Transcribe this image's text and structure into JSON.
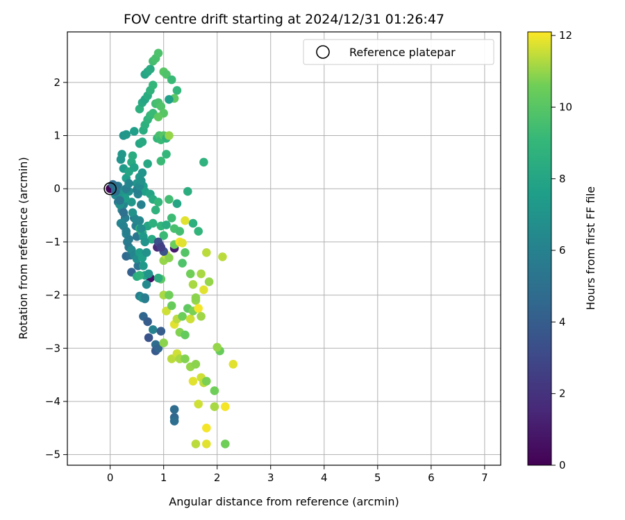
{
  "chart_data": {
    "type": "scatter",
    "title": "FOV centre drift starting at 2024/12/31 01:26:47",
    "xlabel": "Angular distance from reference (arcmin)",
    "ylabel": "Rotation from reference (arcmin)",
    "xlim": [
      -0.8,
      7.3
    ],
    "ylim": [
      -5.2,
      2.95
    ],
    "x_ticks": [
      0,
      1,
      2,
      3,
      4,
      5,
      6,
      7
    ],
    "y_ticks": [
      -5,
      -4,
      -3,
      -2,
      -1,
      0,
      1,
      2
    ],
    "grid": true,
    "legend": {
      "placement": "top-right",
      "entries": [
        "Reference platepar"
      ]
    },
    "reference_point": {
      "label": "Reference platepar",
      "x": 0,
      "y": 0
    },
    "colorbar": {
      "label": "Hours from first FF file",
      "min": 0,
      "max": 12.1,
      "ticks": [
        0,
        2,
        4,
        6,
        8,
        10,
        12
      ],
      "colormap": "viridis"
    },
    "series": [
      {
        "points": [
          [
            0.0,
            0.0,
            0.1
          ],
          [
            0.05,
            0.08,
            4.8
          ],
          [
            0.1,
            -0.02,
            5.6
          ],
          [
            0.12,
            -0.1,
            5.2
          ],
          [
            0.15,
            -0.25,
            5.4
          ],
          [
            0.18,
            -0.05,
            6.0
          ],
          [
            0.2,
            -0.18,
            6.3
          ],
          [
            0.22,
            -0.4,
            5.9
          ],
          [
            0.25,
            -0.3,
            6.2
          ],
          [
            0.28,
            -0.55,
            5.8
          ],
          [
            0.3,
            -0.85,
            6.1
          ],
          [
            0.32,
            -1.0,
            5.7
          ],
          [
            0.35,
            -1.1,
            5.5
          ],
          [
            0.3,
            -1.27,
            4.6
          ],
          [
            0.38,
            -1.25,
            5.0
          ],
          [
            0.4,
            -1.57,
            4.2
          ],
          [
            0.45,
            -0.55,
            5.6
          ],
          [
            0.48,
            -0.7,
            5.8
          ],
          [
            0.5,
            -0.9,
            5.3
          ],
          [
            0.52,
            -1.45,
            5.1
          ],
          [
            0.55,
            -2.02,
            5.9
          ],
          [
            0.6,
            -2.05,
            5.5
          ],
          [
            0.62,
            -2.4,
            4.5
          ],
          [
            0.65,
            -2.07,
            5.7
          ],
          [
            0.7,
            -2.5,
            4.0
          ],
          [
            0.72,
            -2.8,
            3.5
          ],
          [
            0.75,
            -1.68,
            0.6
          ],
          [
            0.8,
            -2.65,
            6.0
          ],
          [
            0.85,
            -2.93,
            4.8
          ],
          [
            0.85,
            -3.05,
            3.8
          ],
          [
            0.9,
            -3.0,
            4.4
          ],
          [
            0.95,
            -2.68,
            4.0
          ],
          [
            0.88,
            -1.1,
            1.6
          ],
          [
            0.92,
            -1.05,
            2.0
          ],
          [
            1.2,
            -1.12,
            1.0
          ],
          [
            1.2,
            -4.15,
            4.8
          ],
          [
            1.2,
            -4.3,
            4.6
          ],
          [
            1.2,
            -4.37,
            4.9
          ],
          [
            0.2,
            0.55,
            7.0
          ],
          [
            0.22,
            0.65,
            7.2
          ],
          [
            0.25,
            0.38,
            7.4
          ],
          [
            0.3,
            0.2,
            7.6
          ],
          [
            0.35,
            0.32,
            8.0
          ],
          [
            0.4,
            0.5,
            8.2
          ],
          [
            0.42,
            0.62,
            8.4
          ],
          [
            0.45,
            0.4,
            7.8
          ],
          [
            0.5,
            0.1,
            7.0
          ],
          [
            0.55,
            0.22,
            7.3
          ],
          [
            0.6,
            0.3,
            7.1
          ],
          [
            0.62,
            0.05,
            7.5
          ],
          [
            0.65,
            -0.05,
            7.7
          ],
          [
            0.7,
            0.47,
            8.1
          ],
          [
            0.75,
            -0.1,
            7.9
          ],
          [
            0.8,
            -0.2,
            8.3
          ],
          [
            0.55,
            -0.75,
            8.5
          ],
          [
            0.6,
            -0.82,
            8.7
          ],
          [
            0.7,
            -0.7,
            8.0
          ],
          [
            0.78,
            -0.95,
            8.2
          ],
          [
            0.8,
            -0.65,
            8.6
          ],
          [
            0.85,
            -0.4,
            8.8
          ],
          [
            0.9,
            -0.25,
            9.0
          ],
          [
            0.95,
            -0.7,
            8.9
          ],
          [
            1.0,
            -0.88,
            9.2
          ],
          [
            1.05,
            -0.68,
            8.4
          ],
          [
            1.1,
            -0.2,
            9.4
          ],
          [
            1.15,
            -0.55,
            9.3
          ],
          [
            1.2,
            -0.75,
            9.6
          ],
          [
            1.25,
            -0.28,
            8.0
          ],
          [
            1.3,
            -0.8,
            9.5
          ],
          [
            1.35,
            -1.4,
            9.8
          ],
          [
            1.4,
            -1.2,
            9.9
          ],
          [
            1.45,
            -0.05,
            8.5
          ],
          [
            1.55,
            -0.65,
            8.6
          ],
          [
            1.65,
            -0.8,
            8.9
          ],
          [
            1.75,
            0.5,
            8.7
          ],
          [
            0.25,
            1.0,
            7.0
          ],
          [
            0.3,
            1.02,
            7.2
          ],
          [
            0.45,
            1.08,
            7.6
          ],
          [
            0.55,
            0.85,
            8.0
          ],
          [
            0.6,
            0.88,
            8.2
          ],
          [
            0.62,
            1.1,
            8.4
          ],
          [
            0.65,
            1.2,
            8.6
          ],
          [
            0.7,
            1.3,
            8.8
          ],
          [
            0.75,
            1.38,
            9.0
          ],
          [
            0.8,
            1.42,
            9.2
          ],
          [
            0.85,
            1.6,
            9.4
          ],
          [
            0.9,
            1.62,
            9.6
          ],
          [
            0.95,
            1.55,
            9.8
          ],
          [
            1.0,
            1.42,
            10.0
          ],
          [
            0.9,
            1.35,
            10.2
          ],
          [
            0.88,
            0.95,
            9.0
          ],
          [
            0.92,
            1.0,
            9.6
          ],
          [
            0.95,
            0.92,
            9.2
          ],
          [
            1.0,
            1.0,
            10.0
          ],
          [
            1.05,
            0.95,
            8.8
          ],
          [
            1.1,
            1.0,
            11.0
          ],
          [
            1.05,
            0.65,
            9.0
          ],
          [
            0.95,
            0.52,
            9.2
          ],
          [
            0.55,
            1.5,
            8.6
          ],
          [
            0.6,
            1.62,
            8.2
          ],
          [
            0.65,
            1.68,
            8.0
          ],
          [
            0.7,
            1.75,
            8.4
          ],
          [
            0.75,
            1.85,
            8.8
          ],
          [
            0.8,
            1.95,
            9.0
          ],
          [
            0.65,
            2.15,
            7.9
          ],
          [
            0.7,
            2.2,
            8.1
          ],
          [
            0.75,
            2.25,
            8.3
          ],
          [
            0.8,
            2.4,
            9.5
          ],
          [
            0.85,
            2.45,
            9.6
          ],
          [
            0.9,
            2.55,
            9.7
          ],
          [
            1.0,
            2.2,
            10.0
          ],
          [
            1.05,
            2.15,
            9.8
          ],
          [
            1.15,
            2.05,
            9.2
          ],
          [
            1.25,
            1.85,
            9.0
          ],
          [
            1.2,
            1.7,
            10.1
          ],
          [
            1.1,
            1.68,
            7.6
          ],
          [
            1.0,
            -1.35,
            11.0
          ],
          [
            1.05,
            -1.25,
            11.5
          ],
          [
            1.1,
            -1.3,
            10.9
          ],
          [
            1.2,
            -1.05,
            10.5
          ],
          [
            1.3,
            -1.0,
            12.0
          ],
          [
            1.35,
            -1.02,
            11.8
          ],
          [
            1.4,
            -0.6,
            11.8
          ],
          [
            1.5,
            -1.6,
            10.6
          ],
          [
            1.55,
            -1.8,
            11.2
          ],
          [
            1.6,
            -2.1,
            11.0
          ],
          [
            1.7,
            -1.6,
            11.2
          ],
          [
            1.75,
            -1.9,
            11.8
          ],
          [
            1.8,
            -1.2,
            11.4
          ],
          [
            1.85,
            -1.75,
            11.0
          ],
          [
            2.1,
            -1.28,
            11.4
          ],
          [
            0.95,
            -1.7,
            10.1
          ],
          [
            1.0,
            -2.0,
            11.2
          ],
          [
            1.05,
            -2.3,
            11.6
          ],
          [
            1.1,
            -2.0,
            10.6
          ],
          [
            1.15,
            -2.2,
            10.4
          ],
          [
            1.2,
            -2.55,
            11.8
          ],
          [
            1.25,
            -2.45,
            11.4
          ],
          [
            1.3,
            -2.7,
            10.8
          ],
          [
            1.35,
            -2.4,
            10.5
          ],
          [
            1.4,
            -2.75,
            10.3
          ],
          [
            1.45,
            -2.25,
            10.2
          ],
          [
            1.5,
            -2.45,
            11.6
          ],
          [
            1.55,
            -2.3,
            10.7
          ],
          [
            1.6,
            -2.05,
            10.9
          ],
          [
            1.65,
            -2.25,
            12.0
          ],
          [
            1.7,
            -2.4,
            11.1
          ],
          [
            1.0,
            -2.9,
            10.9
          ],
          [
            1.15,
            -3.2,
            11.4
          ],
          [
            1.25,
            -3.1,
            11.6
          ],
          [
            1.3,
            -3.2,
            11.2
          ],
          [
            1.4,
            -3.2,
            10.8
          ],
          [
            1.5,
            -3.35,
            11.0
          ],
          [
            1.55,
            -3.62,
            11.8
          ],
          [
            1.6,
            -3.3,
            10.9
          ],
          [
            1.7,
            -3.55,
            11.6
          ],
          [
            1.75,
            -3.65,
            11.4
          ],
          [
            1.8,
            -3.62,
            10.7
          ],
          [
            1.65,
            -4.05,
            11.6
          ],
          [
            1.95,
            -3.8,
            10.6
          ],
          [
            1.95,
            -4.1,
            11.2
          ],
          [
            2.05,
            -3.05,
            10.4
          ],
          [
            2.0,
            -2.98,
            11.0
          ],
          [
            2.15,
            -4.1,
            12.0
          ],
          [
            2.3,
            -3.3,
            11.8
          ],
          [
            1.8,
            -4.5,
            12.0
          ],
          [
            1.6,
            -4.8,
            11.4
          ],
          [
            1.8,
            -4.8,
            11.8
          ],
          [
            2.15,
            -4.8,
            10.6
          ],
          [
            0.1,
            -0.12,
            6.4
          ],
          [
            0.15,
            0.05,
            6.6
          ],
          [
            0.18,
            -0.3,
            6.8
          ],
          [
            0.22,
            -0.1,
            7.0
          ],
          [
            0.28,
            -0.2,
            6.5
          ],
          [
            0.35,
            -0.05,
            6.7
          ],
          [
            0.4,
            -0.25,
            7.2
          ],
          [
            0.42,
            -0.45,
            6.9
          ],
          [
            0.48,
            -0.58,
            6.3
          ],
          [
            0.52,
            -0.1,
            6.1
          ],
          [
            0.58,
            -0.3,
            6.0
          ],
          [
            0.2,
            -0.65,
            6.2
          ],
          [
            0.25,
            -0.7,
            6.0
          ],
          [
            0.3,
            -0.8,
            5.9
          ],
          [
            0.35,
            -0.95,
            5.7
          ],
          [
            0.4,
            -1.15,
            6.4
          ],
          [
            0.45,
            -1.25,
            6.2
          ],
          [
            0.5,
            -1.32,
            6.6
          ],
          [
            0.55,
            -1.2,
            7.5
          ],
          [
            0.6,
            -1.3,
            7.6
          ],
          [
            0.62,
            -1.45,
            7.3
          ],
          [
            0.65,
            -1.63,
            7.8
          ],
          [
            0.68,
            -1.8,
            6.5
          ],
          [
            0.72,
            -1.6,
            7.0
          ],
          [
            0.5,
            -1.65,
            8.4
          ],
          [
            0.55,
            -1.63,
            8.8
          ],
          [
            0.6,
            -2.05,
            6.8
          ],
          [
            0.65,
            -2.05,
            5.8
          ],
          [
            0.9,
            -1.68,
            8.5
          ],
          [
            0.3,
            0.0,
            5.8
          ],
          [
            0.35,
            0.1,
            6.2
          ],
          [
            0.28,
            -0.18,
            7.5
          ],
          [
            0.5,
            -0.02,
            5.9
          ],
          [
            0.55,
            0.05,
            6.5
          ],
          [
            0.58,
            0.15,
            6.9
          ],
          [
            0.1,
            -0.05,
            4.9
          ],
          [
            0.12,
            0.05,
            5.1
          ],
          [
            0.18,
            -0.22,
            5.3
          ],
          [
            0.55,
            -0.6,
            6.3
          ],
          [
            0.58,
            -0.75,
            6.7
          ],
          [
            0.62,
            -0.9,
            7.3
          ],
          [
            0.65,
            -1.0,
            7.1
          ],
          [
            0.68,
            -1.2,
            6.9
          ],
          [
            1.0,
            -1.18,
            3.5
          ],
          [
            0.9,
            -1.0,
            3.3
          ],
          [
            0.95,
            -1.1,
            2.5
          ],
          [
            0.25,
            -0.45,
            5.0
          ]
        ]
      }
    ]
  }
}
